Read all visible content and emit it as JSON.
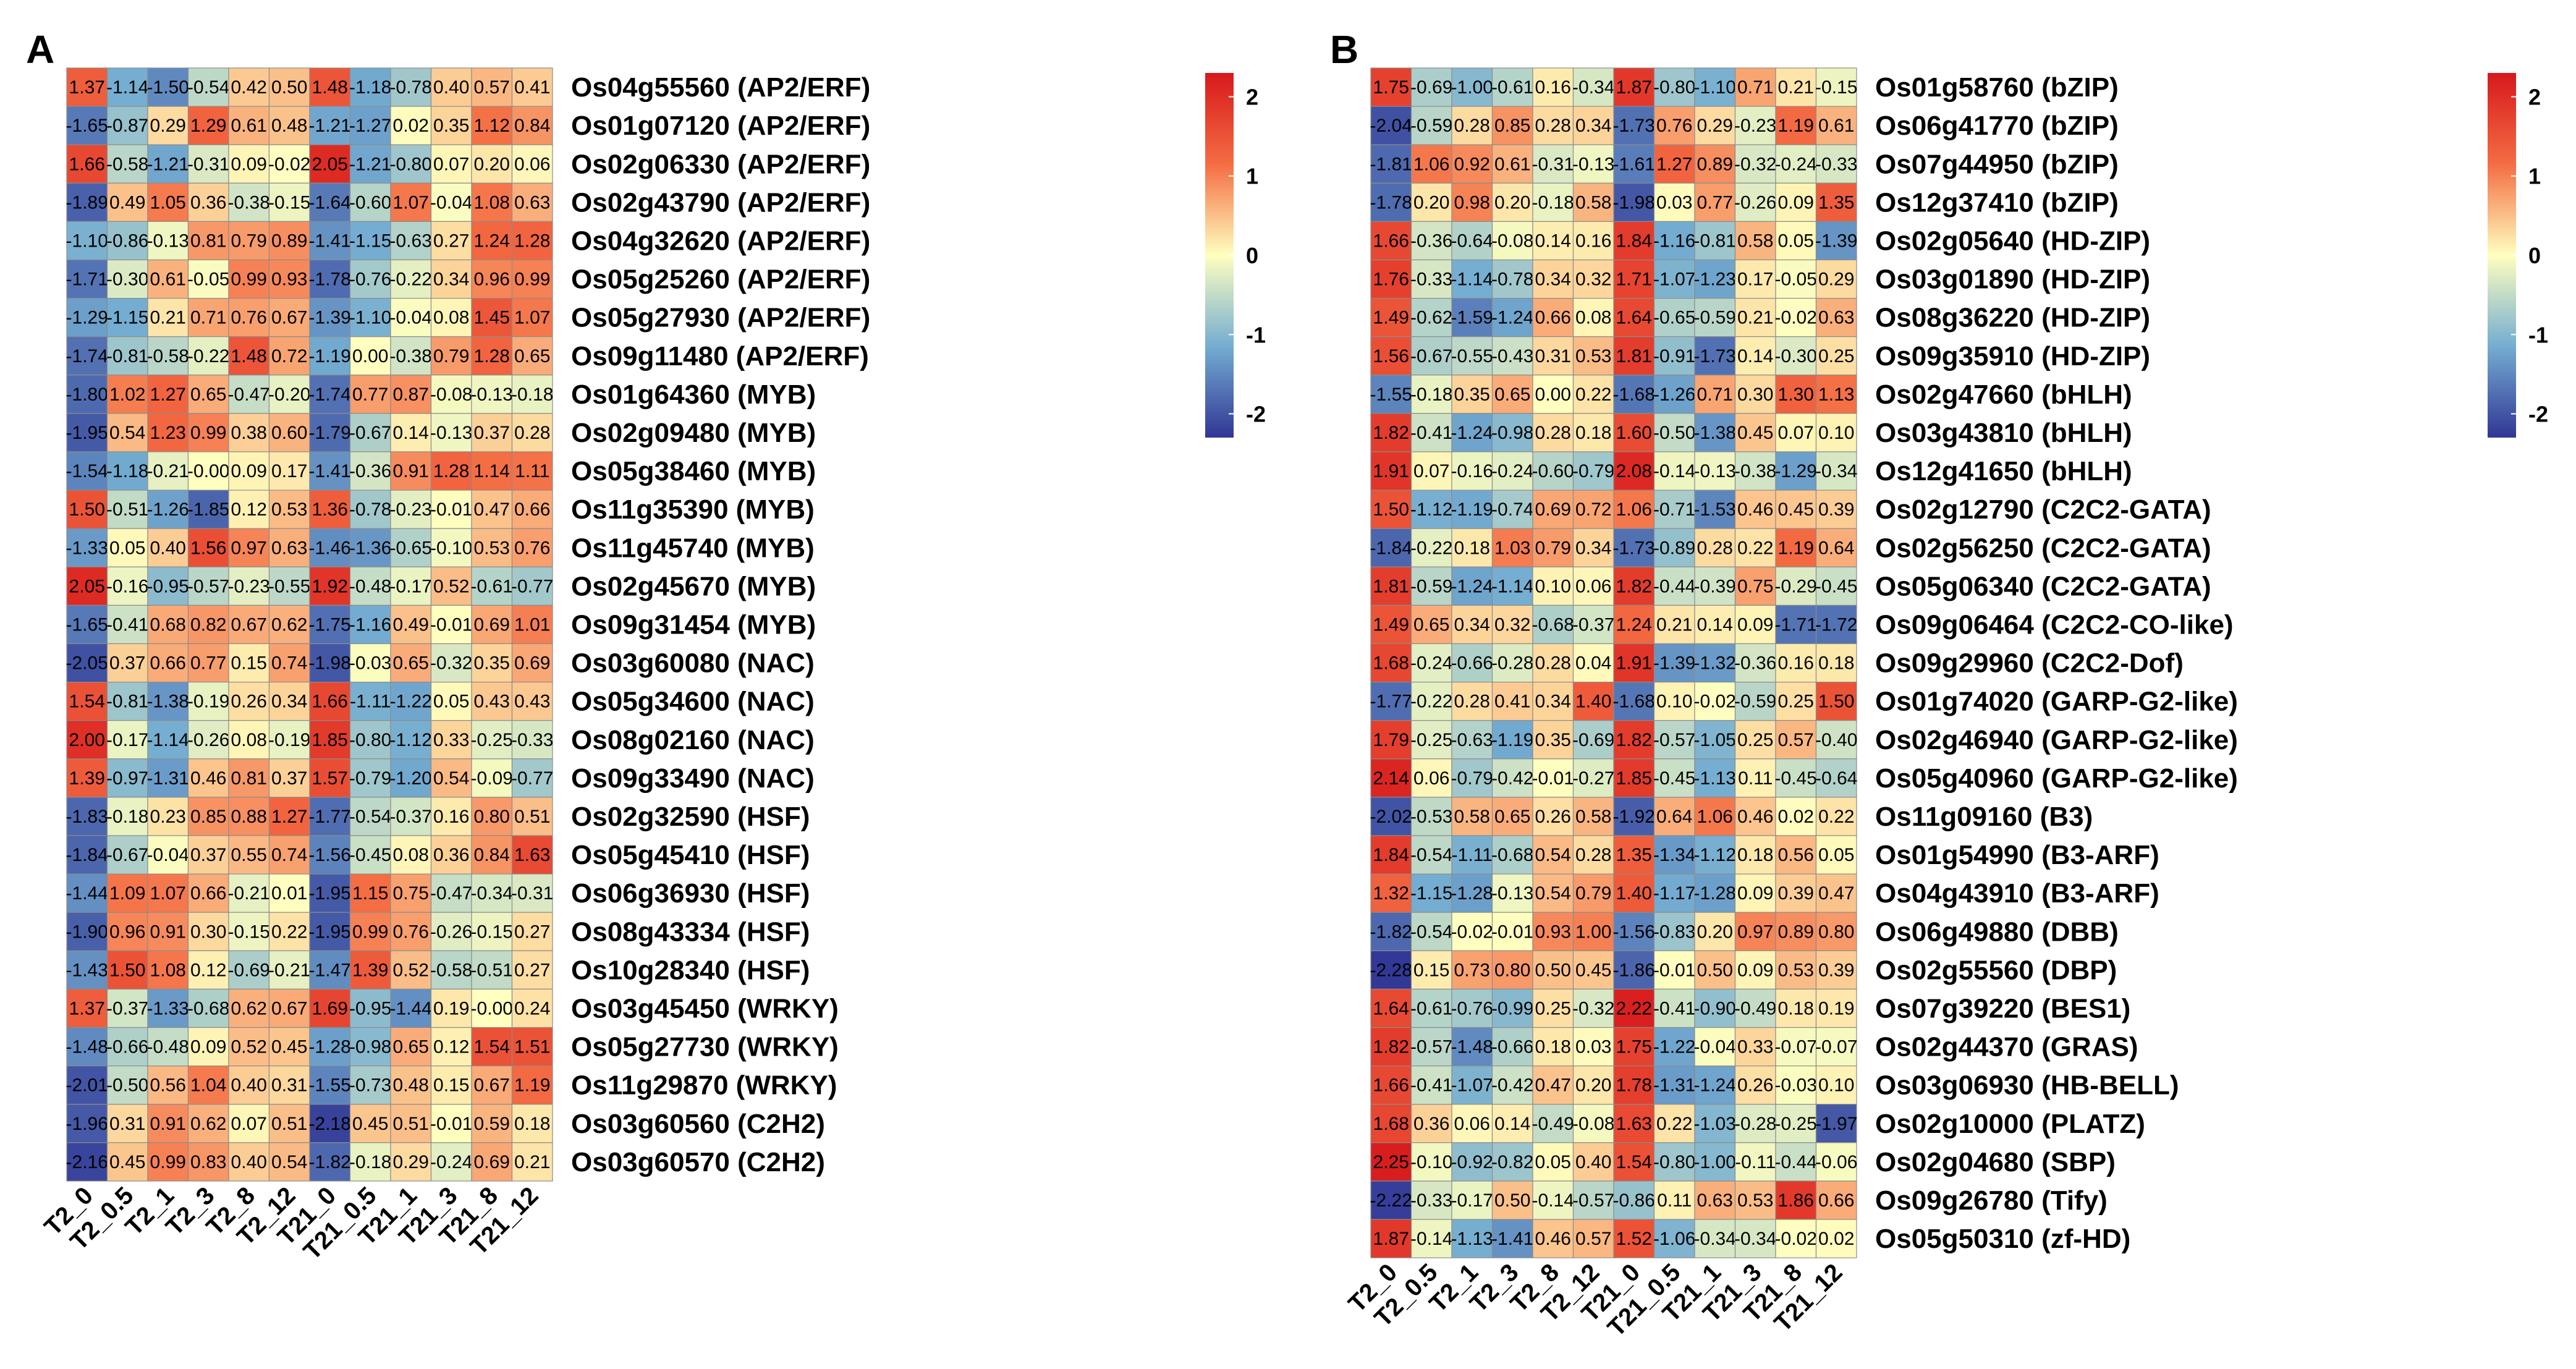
{
  "figure": {
    "colorscale": {
      "low": "#313695",
      "mid": "#FFFFBF",
      "high": "#D7191C",
      "min": -2.3,
      "max": 2.3
    }
  },
  "chart_data": [
    {
      "type": "heatmap",
      "panel": "A",
      "title": "",
      "columns": [
        "T2_0",
        "T2_0.5",
        "T2_1",
        "T2_3",
        "T2_8",
        "T2_12",
        "T21_0",
        "T21_0.5",
        "T21_1",
        "T21_3",
        "T21_8",
        "T21_12"
      ],
      "rows": [
        "Os04g55560 (AP2/ERF)",
        "Os01g07120 (AP2/ERF)",
        "Os02g06330 (AP2/ERF)",
        "Os02g43790 (AP2/ERF)",
        "Os04g32620 (AP2/ERF)",
        "Os05g25260 (AP2/ERF)",
        "Os05g27930 (AP2/ERF)",
        "Os09g11480 (AP2/ERF)",
        "Os01g64360 (MYB)",
        "Os02g09480 (MYB)",
        "Os05g38460 (MYB)",
        "Os11g35390 (MYB)",
        "Os11g45740 (MYB)",
        "Os02g45670 (MYB)",
        "Os09g31454 (MYB)",
        "Os03g60080 (NAC)",
        "Os05g34600 (NAC)",
        "Os08g02160 (NAC)",
        "Os09g33490 (NAC)",
        "Os02g32590 (HSF)",
        "Os05g45410 (HSF)",
        "Os06g36930 (HSF)",
        "Os08g43334 (HSF)",
        "Os10g28340 (HSF)",
        "Os03g45450 (WRKY)",
        "Os05g27730 (WRKY)",
        "Os11g29870 (WRKY)",
        "Os03g60560 (C2H2)",
        "Os03g60570 (C2H2)"
      ],
      "values": [
        [
          "1.37",
          "-1.14",
          "-1.50",
          "-0.54",
          "0.42",
          "0.50",
          "1.48",
          "-1.18",
          "-0.78",
          "0.40",
          "0.57",
          "0.41"
        ],
        [
          "-1.65",
          "-0.87",
          "0.29",
          "1.29",
          "0.61",
          "0.48",
          "-1.21",
          "-1.27",
          "0.02",
          "0.35",
          "1.12",
          "0.84"
        ],
        [
          "1.66",
          "-0.58",
          "-1.21",
          "-0.31",
          "0.09",
          "-0.02",
          "2.05",
          "-1.21",
          "-0.80",
          "0.07",
          "0.20",
          "0.06"
        ],
        [
          "-1.89",
          "0.49",
          "1.05",
          "0.36",
          "-0.38",
          "-0.15",
          "-1.64",
          "-0.60",
          "1.07",
          "-0.04",
          "1.08",
          "0.63"
        ],
        [
          "-1.10",
          "-0.86",
          "-0.13",
          "0.81",
          "0.79",
          "0.89",
          "-1.41",
          "-1.15",
          "-0.63",
          "0.27",
          "1.24",
          "1.28"
        ],
        [
          "-1.71",
          "-0.30",
          "0.61",
          "-0.05",
          "0.99",
          "0.93",
          "-1.78",
          "-0.76",
          "-0.22",
          "0.34",
          "0.96",
          "0.99"
        ],
        [
          "-1.29",
          "-1.15",
          "0.21",
          "0.71",
          "0.76",
          "0.67",
          "-1.39",
          "-1.10",
          "-0.04",
          "0.08",
          "1.45",
          "1.07"
        ],
        [
          "-1.74",
          "-0.81",
          "-0.58",
          "-0.22",
          "1.48",
          "0.72",
          "-1.19",
          "0.00",
          "-0.38",
          "0.79",
          "1.28",
          "0.65"
        ],
        [
          "-1.80",
          "1.02",
          "1.27",
          "0.65",
          "-0.47",
          "-0.20",
          "-1.74",
          "0.77",
          "0.87",
          "-0.08",
          "-0.13",
          "-0.18"
        ],
        [
          "-1.95",
          "0.54",
          "1.23",
          "0.99",
          "0.38",
          "0.60",
          "-1.79",
          "-0.67",
          "0.14",
          "-0.13",
          "0.37",
          "0.28"
        ],
        [
          "-1.54",
          "-1.18",
          "-0.21",
          "-0.00",
          "0.09",
          "0.17",
          "-1.41",
          "-0.36",
          "0.91",
          "1.28",
          "1.14",
          "1.11"
        ],
        [
          "1.50",
          "-0.51",
          "-1.26",
          "-1.85",
          "0.12",
          "0.53",
          "1.36",
          "-0.78",
          "-0.23",
          "-0.01",
          "0.47",
          "0.66"
        ],
        [
          "-1.33",
          "0.05",
          "0.40",
          "1.56",
          "0.97",
          "0.63",
          "-1.46",
          "-1.36",
          "-0.65",
          "-0.10",
          "0.53",
          "0.76"
        ],
        [
          "2.05",
          "-0.16",
          "-0.95",
          "-0.57",
          "-0.23",
          "-0.55",
          "1.92",
          "-0.48",
          "-0.17",
          "0.52",
          "-0.61",
          "-0.77"
        ],
        [
          "-1.65",
          "-0.41",
          "0.68",
          "0.82",
          "0.67",
          "0.62",
          "-1.75",
          "-1.16",
          "0.49",
          "-0.01",
          "0.69",
          "1.01"
        ],
        [
          "-2.05",
          "0.37",
          "0.66",
          "0.77",
          "0.15",
          "0.74",
          "-1.98",
          "-0.03",
          "0.65",
          "-0.32",
          "0.35",
          "0.69"
        ],
        [
          "1.54",
          "-0.81",
          "-1.38",
          "-0.19",
          "0.26",
          "0.34",
          "1.66",
          "-1.11",
          "-1.22",
          "0.05",
          "0.43",
          "0.43"
        ],
        [
          "2.00",
          "-0.17",
          "-1.14",
          "-0.26",
          "0.08",
          "-0.19",
          "1.85",
          "-0.80",
          "-1.12",
          "0.33",
          "-0.25",
          "-0.33"
        ],
        [
          "1.39",
          "-0.97",
          "-1.31",
          "0.46",
          "0.81",
          "0.37",
          "1.57",
          "-0.79",
          "-1.20",
          "0.54",
          "-0.09",
          "-0.77"
        ],
        [
          "-1.83",
          "-0.18",
          "0.23",
          "0.85",
          "0.88",
          "1.27",
          "-1.77",
          "-0.54",
          "-0.37",
          "0.16",
          "0.80",
          "0.51"
        ],
        [
          "-1.84",
          "-0.67",
          "-0.04",
          "0.37",
          "0.55",
          "0.74",
          "-1.56",
          "-0.45",
          "0.08",
          "0.36",
          "0.84",
          "1.63"
        ],
        [
          "-1.44",
          "1.09",
          "1.07",
          "0.66",
          "-0.21",
          "0.01",
          "-1.95",
          "1.15",
          "0.75",
          "-0.47",
          "-0.34",
          "-0.31"
        ],
        [
          "-1.90",
          "0.96",
          "0.91",
          "0.30",
          "-0.15",
          "0.22",
          "-1.95",
          "0.99",
          "0.76",
          "-0.26",
          "-0.15",
          "0.27"
        ],
        [
          "-1.43",
          "1.50",
          "1.08",
          "0.12",
          "-0.69",
          "-0.21",
          "-1.47",
          "1.39",
          "0.52",
          "-0.58",
          "-0.51",
          "0.27"
        ],
        [
          "1.37",
          "-0.37",
          "-1.33",
          "-0.68",
          "0.62",
          "0.67",
          "1.69",
          "-0.95",
          "-1.44",
          "0.19",
          "-0.00",
          "0.24"
        ],
        [
          "-1.48",
          "-0.66",
          "-0.48",
          "0.09",
          "0.52",
          "0.45",
          "-1.28",
          "-0.98",
          "0.65",
          "0.12",
          "1.54",
          "1.51"
        ],
        [
          "-2.01",
          "-0.50",
          "0.56",
          "1.04",
          "0.40",
          "0.31",
          "-1.55",
          "-0.73",
          "0.48",
          "0.15",
          "0.67",
          "1.19"
        ],
        [
          "-1.96",
          "0.31",
          "0.91",
          "0.62",
          "0.07",
          "0.51",
          "-2.18",
          "0.45",
          "0.51",
          "-0.01",
          "0.59",
          "0.18"
        ],
        [
          "-2.16",
          "0.45",
          "0.99",
          "0.83",
          "0.40",
          "0.54",
          "-1.82",
          "-0.18",
          "0.29",
          "-0.24",
          "0.69",
          "0.21"
        ]
      ],
      "legend_ticks": [
        "2",
        "1",
        "0",
        "-1",
        "-2"
      ]
    },
    {
      "type": "heatmap",
      "panel": "B",
      "title": "",
      "columns": [
        "T2_0",
        "T2_0.5",
        "T2_1",
        "T2_3",
        "T2_8",
        "T2_12",
        "T21_0",
        "T21_0.5",
        "T21_1",
        "T21_3",
        "T21_8",
        "T21_12"
      ],
      "rows": [
        "Os01g58760 (bZIP)",
        "Os06g41770 (bZIP)",
        "Os07g44950 (bZIP)",
        "Os12g37410 (bZIP)",
        "Os02g05640 (HD-ZIP)",
        "Os03g01890 (HD-ZIP)",
        "Os08g36220 (HD-ZIP)",
        "Os09g35910 (HD-ZIP)",
        "Os02g47660 (bHLH)",
        "Os03g43810 (bHLH)",
        "Os12g41650 (bHLH)",
        "Os02g12790 (C2C2-GATA)",
        "Os02g56250 (C2C2-GATA)",
        "Os05g06340 (C2C2-GATA)",
        "Os09g06464 (C2C2-CO-like)",
        "Os09g29960 (C2C2-Dof)",
        "Os01g74020 (GARP-G2-like)",
        "Os02g46940 (GARP-G2-like)",
        "Os05g40960 (GARP-G2-like)",
        "Os11g09160 (B3)",
        "Os01g54990 (B3-ARF)",
        "Os04g43910 (B3-ARF)",
        "Os06g49880 (DBB)",
        "Os02g55560 (DBP)",
        "Os07g39220 (BES1)",
        "Os02g44370 (GRAS)",
        "Os03g06930 (HB-BELL)",
        "Os02g10000 (PLATZ)",
        "Os02g04680 (SBP)",
        "Os09g26780 (Tify)",
        "Os05g50310 (zf-HD)"
      ],
      "values": [
        [
          "1.75",
          "-0.69",
          "-1.00",
          "-0.61",
          "0.16",
          "-0.34",
          "1.87",
          "-0.80",
          "-1.10",
          "0.71",
          "0.21",
          "-0.15"
        ],
        [
          "-2.04",
          "-0.59",
          "0.28",
          "0.85",
          "0.28",
          "0.34",
          "-1.73",
          "0.76",
          "0.29",
          "-0.23",
          "1.19",
          "0.61"
        ],
        [
          "-1.81",
          "1.06",
          "0.92",
          "0.61",
          "-0.31",
          "-0.13",
          "-1.61",
          "1.27",
          "0.89",
          "-0.32",
          "-0.24",
          "-0.33"
        ],
        [
          "-1.78",
          "0.20",
          "0.98",
          "0.20",
          "-0.18",
          "0.58",
          "-1.98",
          "0.03",
          "0.77",
          "-0.26",
          "0.09",
          "1.35"
        ],
        [
          "1.66",
          "-0.36",
          "-0.64",
          "-0.08",
          "0.14",
          "0.16",
          "1.84",
          "-1.16",
          "-0.81",
          "0.58",
          "0.05",
          "-1.39"
        ],
        [
          "1.76",
          "-0.33",
          "-1.14",
          "-0.78",
          "0.34",
          "0.32",
          "1.71",
          "-1.07",
          "-1.23",
          "0.17",
          "-0.05",
          "0.29"
        ],
        [
          "1.49",
          "-0.62",
          "-1.59",
          "-1.24",
          "0.66",
          "0.08",
          "1.64",
          "-0.65",
          "-0.59",
          "0.21",
          "-0.02",
          "0.63"
        ],
        [
          "1.56",
          "-0.67",
          "-0.55",
          "-0.43",
          "0.31",
          "0.53",
          "1.81",
          "-0.91",
          "-1.73",
          "0.14",
          "-0.30",
          "0.25"
        ],
        [
          "-1.55",
          "-0.18",
          "0.35",
          "0.65",
          "0.00",
          "0.22",
          "-1.68",
          "-1.26",
          "0.71",
          "0.30",
          "1.30",
          "1.13"
        ],
        [
          "1.82",
          "-0.41",
          "-1.24",
          "-0.98",
          "0.28",
          "0.18",
          "1.60",
          "-0.50",
          "-1.38",
          "0.45",
          "0.07",
          "0.10"
        ],
        [
          "1.91",
          "0.07",
          "-0.16",
          "-0.24",
          "-0.60",
          "-0.79",
          "2.08",
          "-0.14",
          "-0.13",
          "-0.38",
          "-1.29",
          "-0.34"
        ],
        [
          "1.50",
          "-1.12",
          "-1.19",
          "-0.74",
          "0.69",
          "0.72",
          "1.06",
          "-0.71",
          "-1.53",
          "0.46",
          "0.45",
          "0.39"
        ],
        [
          "-1.84",
          "-0.22",
          "0.18",
          "1.03",
          "0.79",
          "0.34",
          "-1.73",
          "-0.89",
          "0.28",
          "0.22",
          "1.19",
          "0.64"
        ],
        [
          "1.81",
          "-0.59",
          "-1.24",
          "-1.14",
          "0.10",
          "0.06",
          "1.82",
          "-0.44",
          "-0.39",
          "0.75",
          "-0.29",
          "-0.45"
        ],
        [
          "1.49",
          "0.65",
          "0.34",
          "0.32",
          "-0.68",
          "-0.37",
          "1.24",
          "0.21",
          "0.14",
          "0.09",
          "-1.71",
          "-1.72"
        ],
        [
          "1.68",
          "-0.24",
          "-0.66",
          "-0.28",
          "0.28",
          "0.04",
          "1.91",
          "-1.39",
          "-1.32",
          "-0.36",
          "0.16",
          "0.18"
        ],
        [
          "-1.77",
          "-0.22",
          "0.28",
          "0.41",
          "0.34",
          "1.40",
          "-1.68",
          "0.10",
          "-0.02",
          "-0.59",
          "0.25",
          "1.50"
        ],
        [
          "1.79",
          "-0.25",
          "-0.63",
          "-1.19",
          "0.35",
          "-0.69",
          "1.82",
          "-0.57",
          "-1.05",
          "0.25",
          "0.57",
          "-0.40"
        ],
        [
          "2.14",
          "0.06",
          "-0.79",
          "-0.42",
          "-0.01",
          "-0.27",
          "1.85",
          "-0.45",
          "-1.13",
          "0.11",
          "-0.45",
          "-0.64"
        ],
        [
          "-2.02",
          "-0.53",
          "0.58",
          "0.65",
          "0.26",
          "0.58",
          "-1.92",
          "0.64",
          "1.06",
          "0.46",
          "0.02",
          "0.22"
        ],
        [
          "1.84",
          "-0.54",
          "-1.11",
          "-0.68",
          "0.54",
          "0.28",
          "1.35",
          "-1.34",
          "-1.12",
          "0.18",
          "0.56",
          "0.05"
        ],
        [
          "1.32",
          "-1.15",
          "-1.28",
          "-0.13",
          "0.54",
          "0.79",
          "1.40",
          "-1.17",
          "-1.28",
          "0.09",
          "0.39",
          "0.47"
        ],
        [
          "-1.82",
          "-0.54",
          "-0.02",
          "-0.01",
          "0.93",
          "1.00",
          "-1.56",
          "-0.83",
          "0.20",
          "0.97",
          "0.89",
          "0.80"
        ],
        [
          "-2.28",
          "0.15",
          "0.73",
          "0.80",
          "0.50",
          "0.45",
          "-1.86",
          "-0.01",
          "0.50",
          "0.09",
          "0.53",
          "0.39"
        ],
        [
          "1.64",
          "-0.61",
          "-0.76",
          "-0.99",
          "0.25",
          "-0.32",
          "2.22",
          "-0.41",
          "-0.90",
          "-0.49",
          "0.18",
          "0.19"
        ],
        [
          "1.82",
          "-0.57",
          "-1.48",
          "-0.66",
          "0.18",
          "0.03",
          "1.75",
          "-1.22",
          "-0.04",
          "0.33",
          "-0.07",
          "-0.07"
        ],
        [
          "1.66",
          "-0.41",
          "-1.07",
          "-0.42",
          "0.47",
          "0.20",
          "1.78",
          "-1.31",
          "-1.24",
          "0.26",
          "-0.03",
          "0.10"
        ],
        [
          "1.68",
          "0.36",
          "0.06",
          "0.14",
          "-0.49",
          "-0.08",
          "1.63",
          "0.22",
          "-1.03",
          "-0.28",
          "-0.25",
          "-1.97"
        ],
        [
          "2.25",
          "-0.10",
          "-0.92",
          "-0.82",
          "0.05",
          "0.40",
          "1.54",
          "-0.80",
          "-1.00",
          "-0.11",
          "-0.44",
          "-0.06"
        ],
        [
          "-2.22",
          "-0.33",
          "-0.17",
          "0.50",
          "-0.14",
          "-0.57",
          "-0.86",
          "0.11",
          "0.63",
          "0.53",
          "1.86",
          "0.66"
        ],
        [
          "1.87",
          "-0.14",
          "-1.13",
          "-1.41",
          "0.46",
          "0.57",
          "1.52",
          "-1.06",
          "-0.34",
          "-0.34",
          "-0.02",
          "0.02"
        ]
      ],
      "legend_ticks": [
        "2",
        "1",
        "0",
        "-1",
        "-2"
      ]
    }
  ]
}
